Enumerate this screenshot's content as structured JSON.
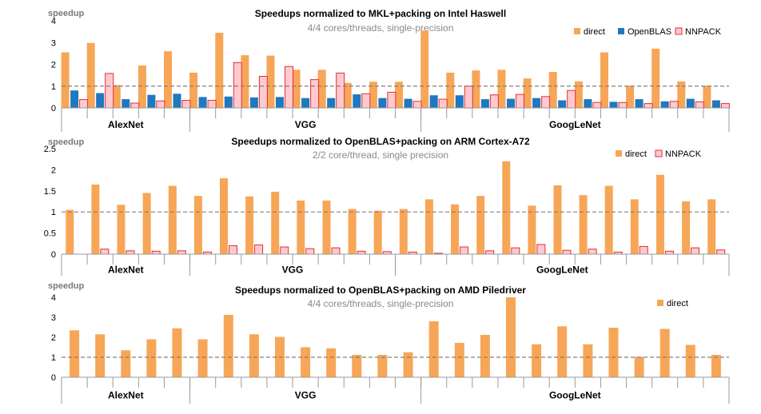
{
  "chart_data": [
    {
      "type": "bar",
      "title": "Speedups normalized to MKL+packing on Intel Haswell",
      "subtitle": "4/4 cores/threads, single-precision",
      "ylabel": "speedup",
      "ylim": [
        0,
        4
      ],
      "yticks": [
        "0",
        "1",
        "2",
        "3",
        "4"
      ],
      "reference_line": 1,
      "legend_position": "top-right",
      "groups": [
        {
          "name": "AlexNet",
          "count": 5
        },
        {
          "name": "VGG",
          "count": 9
        },
        {
          "name": "GoogLeNet",
          "count": 12
        }
      ],
      "series": [
        {
          "name": "direct",
          "color": "#F7A657",
          "values": [
            2.55,
            2.98,
            1.05,
            1.95,
            2.6,
            1.62,
            3.45,
            2.42,
            2.4,
            1.75,
            1.75,
            1.15,
            1.2,
            1.2,
            3.55,
            1.62,
            1.72,
            1.75,
            1.35,
            1.65,
            1.22,
            2.55,
            1.02,
            2.72,
            1.22,
            1.02
          ]
        },
        {
          "name": "OpenBLAS",
          "color": "#1F78C0",
          "values": [
            0.8,
            0.68,
            0.4,
            0.6,
            0.65,
            0.5,
            0.52,
            0.48,
            0.5,
            0.45,
            0.45,
            0.62,
            0.45,
            0.42,
            0.58,
            0.58,
            0.4,
            0.42,
            0.45,
            0.35,
            0.4,
            0.28,
            0.4,
            0.3,
            0.42,
            0.35
          ]
        },
        {
          "name": "NNPACK",
          "color": "#FFC9CF",
          "stroke": "#E03030",
          "values": [
            0.38,
            1.58,
            0.22,
            0.32,
            0.35,
            0.35,
            2.08,
            1.45,
            1.9,
            1.3,
            1.6,
            0.65,
            0.72,
            0.3,
            0.4,
            1.0,
            0.6,
            0.62,
            0.52,
            0.8,
            0.25,
            0.25,
            0.2,
            0.3,
            0.28,
            0.2
          ]
        }
      ]
    },
    {
      "type": "bar",
      "title": "Speedups normalized to OpenBLAS+packing on ARM Cortex-A72",
      "subtitle": "2/2 core/thread,  single precision",
      "ylabel": "speedup",
      "ylim": [
        0,
        2.5
      ],
      "yticks": [
        "0",
        "0.5",
        "1",
        "1.5",
        "2",
        "2.5"
      ],
      "reference_line": 1,
      "legend_position": "top-right",
      "groups": [
        {
          "name": "AlexNet",
          "count": 5
        },
        {
          "name": "VGG",
          "count": 8
        },
        {
          "name": "GoogLeNet",
          "count": 13
        }
      ],
      "series": [
        {
          "name": "direct",
          "color": "#F7A657",
          "values": [
            1.05,
            1.65,
            1.17,
            1.45,
            1.62,
            1.38,
            1.8,
            1.37,
            1.48,
            1.27,
            1.27,
            1.07,
            1.03,
            1.07,
            1.3,
            1.18,
            1.38,
            2.2,
            1.15,
            1.63,
            1.4,
            1.62,
            1.3,
            1.88,
            1.25,
            1.3
          ]
        },
        {
          "name": "NNPACK",
          "color": "#FFC9CF",
          "stroke": "#E03030",
          "values": [
            0.0,
            0.12,
            0.08,
            0.07,
            0.08,
            0.05,
            0.2,
            0.22,
            0.17,
            0.13,
            0.15,
            0.07,
            0.06,
            0.05,
            0.02,
            0.17,
            0.08,
            0.15,
            0.23,
            0.09,
            0.12,
            0.05,
            0.18,
            0.07,
            0.15,
            0.1
          ]
        }
      ]
    },
    {
      "type": "bar",
      "title": "Speedups normalized to OpenBLAS+packing on AMD Piledriver",
      "subtitle": "4/4 cores/threads, single-precision",
      "ylabel": "speedup",
      "ylim": [
        0,
        4
      ],
      "yticks": [
        "0",
        "1",
        "2",
        "3",
        "4"
      ],
      "reference_line": 1,
      "legend_position": "top-right",
      "groups": [
        {
          "name": "AlexNet",
          "count": 5
        },
        {
          "name": "VGG",
          "count": 9
        },
        {
          "name": "GoogLeNet",
          "count": 12
        }
      ],
      "series": [
        {
          "name": "direct",
          "color": "#F7A657",
          "values": [
            2.35,
            2.15,
            1.35,
            1.9,
            2.45,
            1.9,
            3.12,
            2.15,
            2.02,
            1.5,
            1.45,
            1.12,
            1.12,
            1.25,
            2.8,
            1.72,
            2.12,
            4.0,
            1.65,
            2.55,
            1.65,
            2.48,
            1.02,
            2.42,
            1.62,
            1.12
          ]
        }
      ]
    }
  ]
}
